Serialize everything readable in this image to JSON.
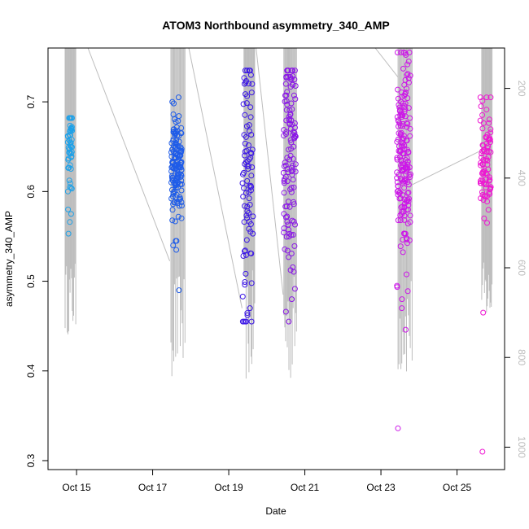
{
  "chart_data": {
    "type": "scatter",
    "title": "ATOM3 Northbound asymmetry_340_AMP",
    "xlabel": "Date",
    "ylabel": "asymmetry_340_AMP",
    "x_ticks": [
      "Oct 15",
      "Oct 17",
      "Oct 19",
      "Oct 21",
      "Oct 23",
      "Oct 25"
    ],
    "x_tick_days": [
      15,
      17,
      19,
      21,
      23,
      25
    ],
    "xlim": [
      14.25,
      26.25
    ],
    "y_ticks": [
      "0.3",
      "0.4",
      "0.5",
      "0.6",
      "0.7"
    ],
    "ylim": [
      0.29,
      0.76
    ],
    "y2_ticks": [
      "200",
      "400",
      "600",
      "800",
      "1000"
    ],
    "y2lim": [
      1050,
      110
    ],
    "grid": false,
    "clusters": [
      {
        "day": 14.83,
        "spread": 0.06,
        "color": "#1ea1e8",
        "count": 45,
        "min": 0.552,
        "max": 0.682,
        "center": 0.65,
        "sd": 0.025,
        "outliers": [
          0.553,
          0.566,
          0.575,
          0.58,
          0.6,
          0.605,
          0.682
        ]
      },
      {
        "day": 17.63,
        "spread": 0.14,
        "color": "#1f5ce8",
        "count": 150,
        "min": 0.49,
        "max": 0.705,
        "center": 0.628,
        "sd": 0.03,
        "outliers": [
          0.49,
          0.535,
          0.54,
          0.545,
          0.705,
          0.7
        ]
      },
      {
        "day": 19.5,
        "spread": 0.14,
        "color": "#3b16e6",
        "count": 85,
        "min": 0.455,
        "max": 0.735,
        "center": 0.62,
        "sd": 0.075,
        "outliers": [
          0.455,
          0.462,
          0.47,
          0.735,
          0.73
        ]
      },
      {
        "day": 20.6,
        "spread": 0.16,
        "color": "#8a16e6",
        "count": 120,
        "min": 0.455,
        "max": 0.735,
        "center": 0.63,
        "sd": 0.065,
        "outliers": [
          0.455,
          0.466,
          0.48,
          0.735,
          0.725,
          0.72
        ]
      },
      {
        "day": 23.6,
        "spread": 0.18,
        "color": "#cc16e8",
        "count": 175,
        "min": 0.335,
        "max": 0.755,
        "center": 0.63,
        "sd": 0.055,
        "outliers": [
          0.336,
          0.47,
          0.48,
          0.495,
          0.755,
          0.745,
          0.73
        ]
      },
      {
        "day": 25.75,
        "spread": 0.14,
        "color": "#ee16d2",
        "count": 80,
        "min": 0.31,
        "max": 0.705,
        "center": 0.635,
        "sd": 0.03,
        "outliers": [
          0.31,
          0.465,
          0.565,
          0.57,
          0.705,
          0.695
        ]
      }
    ],
    "line_series": {
      "name": "secondary (right axis)",
      "color": "#bdbdbd",
      "comment": "grey trace drawn against the right axis, mostly near-vertical excursions at each cluster",
      "segments": [
        {
          "x": [
            15.3,
            17.45
          ],
          "y2": [
            110,
            585
          ]
        },
        {
          "x": [
            17.95,
            19.35
          ],
          "y2": [
            110,
            690
          ]
        },
        {
          "x": [
            19.72,
            20.43
          ],
          "y2": [
            110,
            660
          ]
        },
        {
          "x": [
            22.85,
            23.45
          ],
          "y2": [
            110,
            175
          ]
        },
        {
          "x": [
            23.7,
            25.6
          ],
          "y2": [
            420,
            340
          ]
        }
      ],
      "vertical_bundles": [
        {
          "day_from": 14.7,
          "day_to": 14.98,
          "y2_low": 750,
          "y2_high": 110
        },
        {
          "day_from": 17.48,
          "day_to": 17.85,
          "y2_low": 850,
          "y2_high": 110
        },
        {
          "day_from": 19.4,
          "day_to": 19.68,
          "y2_low": 860,
          "y2_high": 110
        },
        {
          "day_from": 20.45,
          "day_to": 20.78,
          "y2_low": 860,
          "y2_high": 110
        },
        {
          "day_from": 23.45,
          "day_to": 23.82,
          "y2_low": 850,
          "y2_high": 110
        },
        {
          "day_from": 25.65,
          "day_to": 25.92,
          "y2_low": 730,
          "y2_high": 110
        }
      ]
    }
  }
}
